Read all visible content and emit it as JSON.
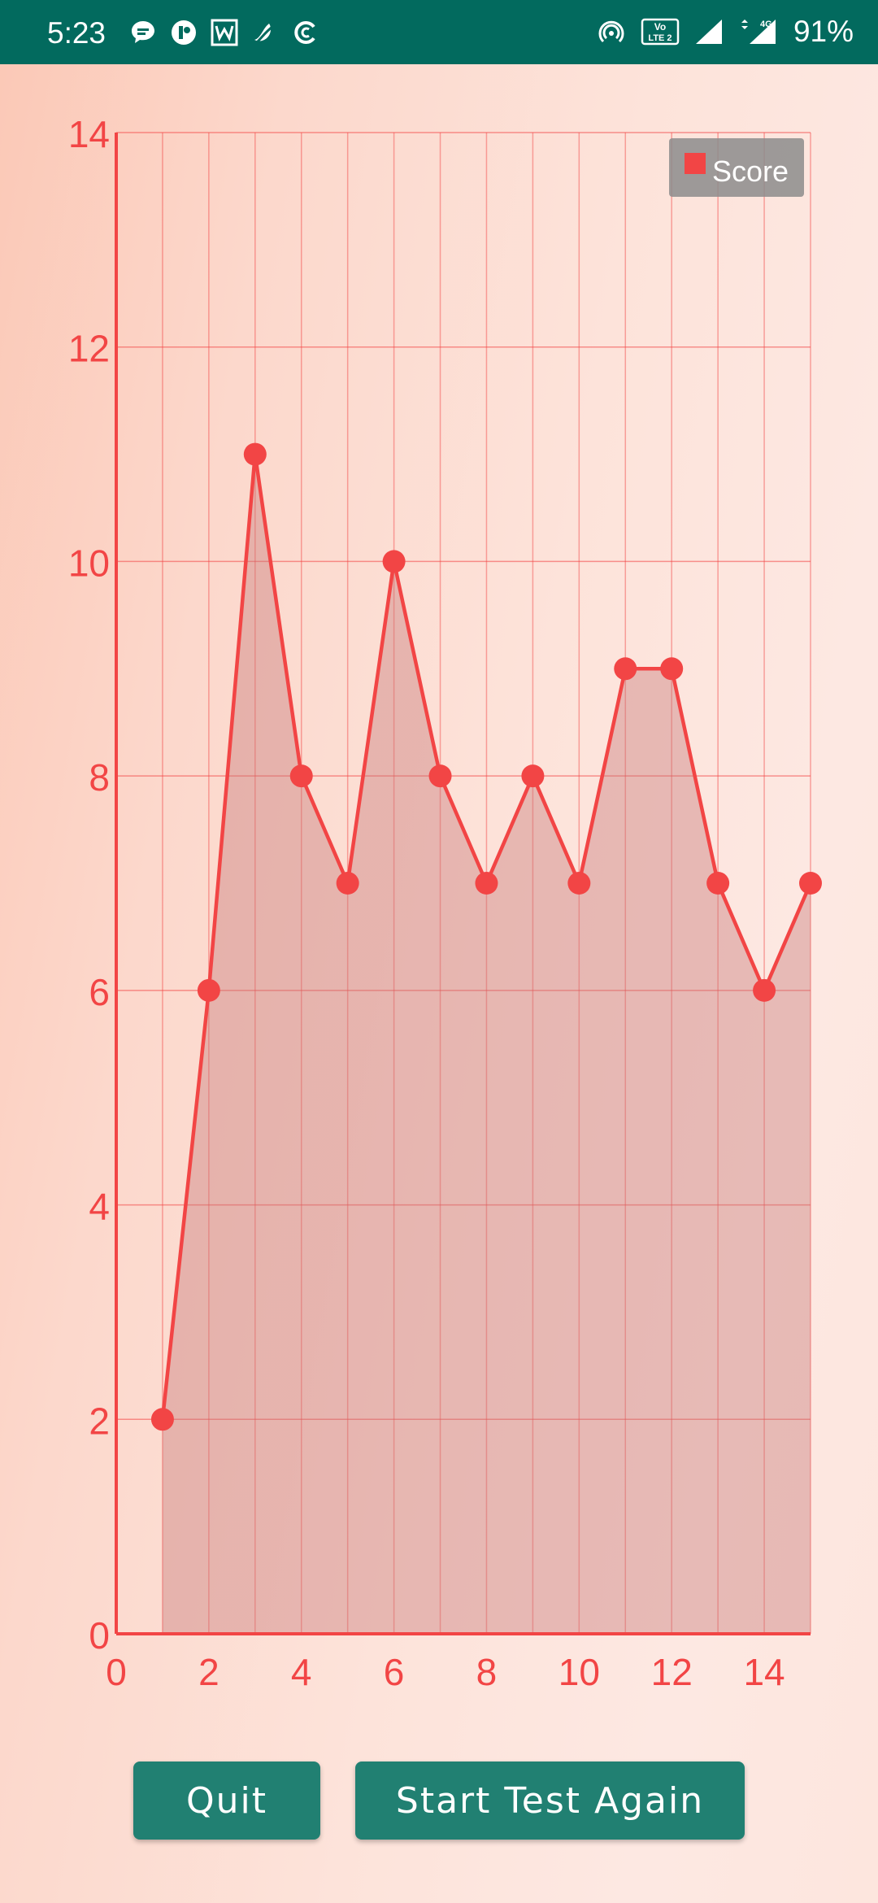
{
  "status_bar": {
    "time": "5:23",
    "left_icons": [
      "chat-icon",
      "circle-app-icon",
      "w-app-icon",
      "leaf-app-icon",
      "c-app-icon"
    ],
    "right_icons": [
      "hotspot-icon",
      "volte-icon",
      "signal-icon",
      "signal-4g-icon"
    ],
    "network_label": "4G",
    "volte_label": "Vo LTE 2",
    "battery": "91%",
    "background": "#026a5e"
  },
  "chart_data": {
    "type": "area",
    "series": [
      {
        "name": "Score",
        "color": "#f24545",
        "x": [
          1,
          2,
          3,
          4,
          5,
          6,
          7,
          8,
          9,
          10,
          11,
          12,
          13,
          14,
          15
        ],
        "values": [
          2,
          6,
          11,
          8,
          7,
          10,
          8,
          7,
          8,
          7,
          9,
          9,
          7,
          6,
          7
        ]
      }
    ],
    "x_ticks": [
      "0",
      "2",
      "4",
      "6",
      "8",
      "10",
      "12",
      "14"
    ],
    "y_ticks": [
      "0",
      "2",
      "4",
      "6",
      "8",
      "10",
      "12",
      "14"
    ],
    "xlim": [
      0,
      15
    ],
    "ylim": [
      0,
      14
    ],
    "grid": true,
    "legend": {
      "placement": "top-right",
      "label": "Score"
    },
    "title": "",
    "xlabel": "",
    "ylabel": ""
  },
  "buttons": {
    "quit": "Quit",
    "start_again": "Start Test Again",
    "color": "#218072"
  }
}
